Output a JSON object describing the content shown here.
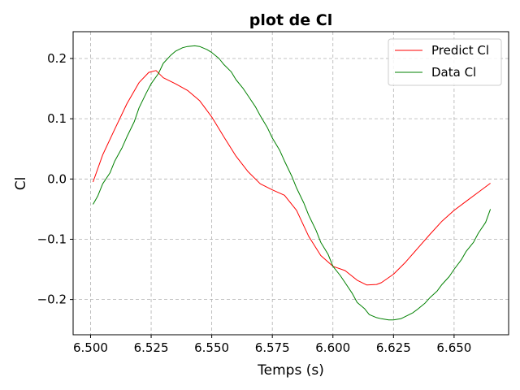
{
  "chart_data": {
    "type": "line",
    "title": "plot de Cl",
    "xlabel": "Temps (s)",
    "ylabel": "Cl",
    "xlim": [
      6.4928,
      6.6725
    ],
    "ylim": [
      -0.2585,
      0.2445
    ],
    "xticks": [
      6.5,
      6.525,
      6.55,
      6.575,
      6.6,
      6.625,
      6.65
    ],
    "xtick_labels": [
      "6.500",
      "6.525",
      "6.550",
      "6.575",
      "6.600",
      "6.625",
      "6.650"
    ],
    "yticks": [
      -0.2,
      -0.1,
      0.0,
      0.1,
      0.2
    ],
    "ytick_labels": [
      "−0.2",
      "−0.1",
      "0.0",
      "0.1",
      "0.2"
    ],
    "grid": true,
    "legend_position": "top-right",
    "series": [
      {
        "name": "Predict Cl",
        "color": "#ff0000",
        "x": [
          6.501,
          6.505,
          6.51,
          6.515,
          6.52,
          6.524,
          6.527,
          6.53,
          6.535,
          6.54,
          6.545,
          6.55,
          6.555,
          6.56,
          6.565,
          6.57,
          6.575,
          6.58,
          6.585,
          6.59,
          6.595,
          6.6,
          6.605,
          6.61,
          6.614,
          6.618,
          6.62,
          6.625,
          6.63,
          6.635,
          6.64,
          6.645,
          6.65,
          6.655,
          6.66,
          6.665
        ],
        "y": [
          -0.005,
          0.04,
          0.083,
          0.125,
          0.16,
          0.177,
          0.18,
          0.168,
          0.158,
          0.147,
          0.13,
          0.103,
          0.07,
          0.038,
          0.012,
          -0.008,
          -0.018,
          -0.027,
          -0.052,
          -0.095,
          -0.127,
          -0.145,
          -0.152,
          -0.168,
          -0.176,
          -0.175,
          -0.172,
          -0.158,
          -0.138,
          -0.115,
          -0.092,
          -0.07,
          -0.052,
          -0.037,
          -0.022,
          -0.007
        ]
      },
      {
        "name": "Data Cl",
        "color": "#008000",
        "x": [
          6.501,
          6.503,
          6.505,
          6.508,
          6.51,
          6.513,
          6.515,
          6.518,
          6.52,
          6.523,
          6.525,
          6.528,
          6.53,
          6.533,
          6.535,
          6.538,
          6.54,
          6.543,
          6.545,
          6.548,
          6.55,
          6.553,
          6.555,
          6.558,
          6.56,
          6.563,
          6.565,
          6.568,
          6.57,
          6.573,
          6.575,
          6.578,
          6.58,
          6.583,
          6.585,
          6.588,
          6.59,
          6.593,
          6.595,
          6.598,
          6.6,
          6.603,
          6.605,
          6.608,
          6.61,
          6.613,
          6.615,
          6.618,
          6.62,
          6.623,
          6.625,
          6.628,
          6.63,
          6.633,
          6.635,
          6.638,
          6.64,
          6.643,
          6.645,
          6.648,
          6.65,
          6.653,
          6.655,
          6.658,
          6.66,
          6.663,
          6.665
        ],
        "y": [
          -0.042,
          -0.028,
          -0.008,
          0.01,
          0.03,
          0.052,
          0.07,
          0.095,
          0.118,
          0.143,
          0.158,
          0.175,
          0.192,
          0.205,
          0.212,
          0.218,
          0.22,
          0.221,
          0.22,
          0.215,
          0.21,
          0.2,
          0.19,
          0.178,
          0.165,
          0.15,
          0.138,
          0.12,
          0.105,
          0.085,
          0.068,
          0.048,
          0.03,
          0.005,
          -0.015,
          -0.04,
          -0.06,
          -0.085,
          -0.105,
          -0.125,
          -0.145,
          -0.16,
          -0.172,
          -0.19,
          -0.205,
          -0.215,
          -0.225,
          -0.23,
          -0.232,
          -0.234,
          -0.234,
          -0.232,
          -0.228,
          -0.222,
          -0.216,
          -0.206,
          -0.197,
          -0.186,
          -0.175,
          -0.162,
          -0.15,
          -0.134,
          -0.12,
          -0.105,
          -0.09,
          -0.072,
          -0.05
        ]
      }
    ]
  }
}
